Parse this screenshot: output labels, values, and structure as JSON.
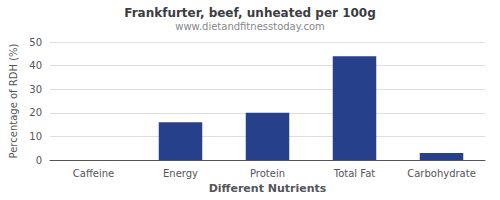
{
  "chart_data": {
    "type": "bar",
    "title": "Frankfurter, beef, unheated per 100g",
    "subtitle": "www.dietandfitnesstoday.com",
    "xlabel": "Different Nutrients",
    "ylabel": "Percentage of RDH (%)",
    "categories": [
      "Caffeine",
      "Energy",
      "Protein",
      "Total Fat",
      "Carbohydrate"
    ],
    "values": [
      0,
      16,
      20,
      44,
      3
    ],
    "color": "#27408B",
    "ylim": [
      0,
      50
    ],
    "yticks": [
      0,
      10,
      20,
      30,
      40,
      50
    ],
    "grid": true
  }
}
